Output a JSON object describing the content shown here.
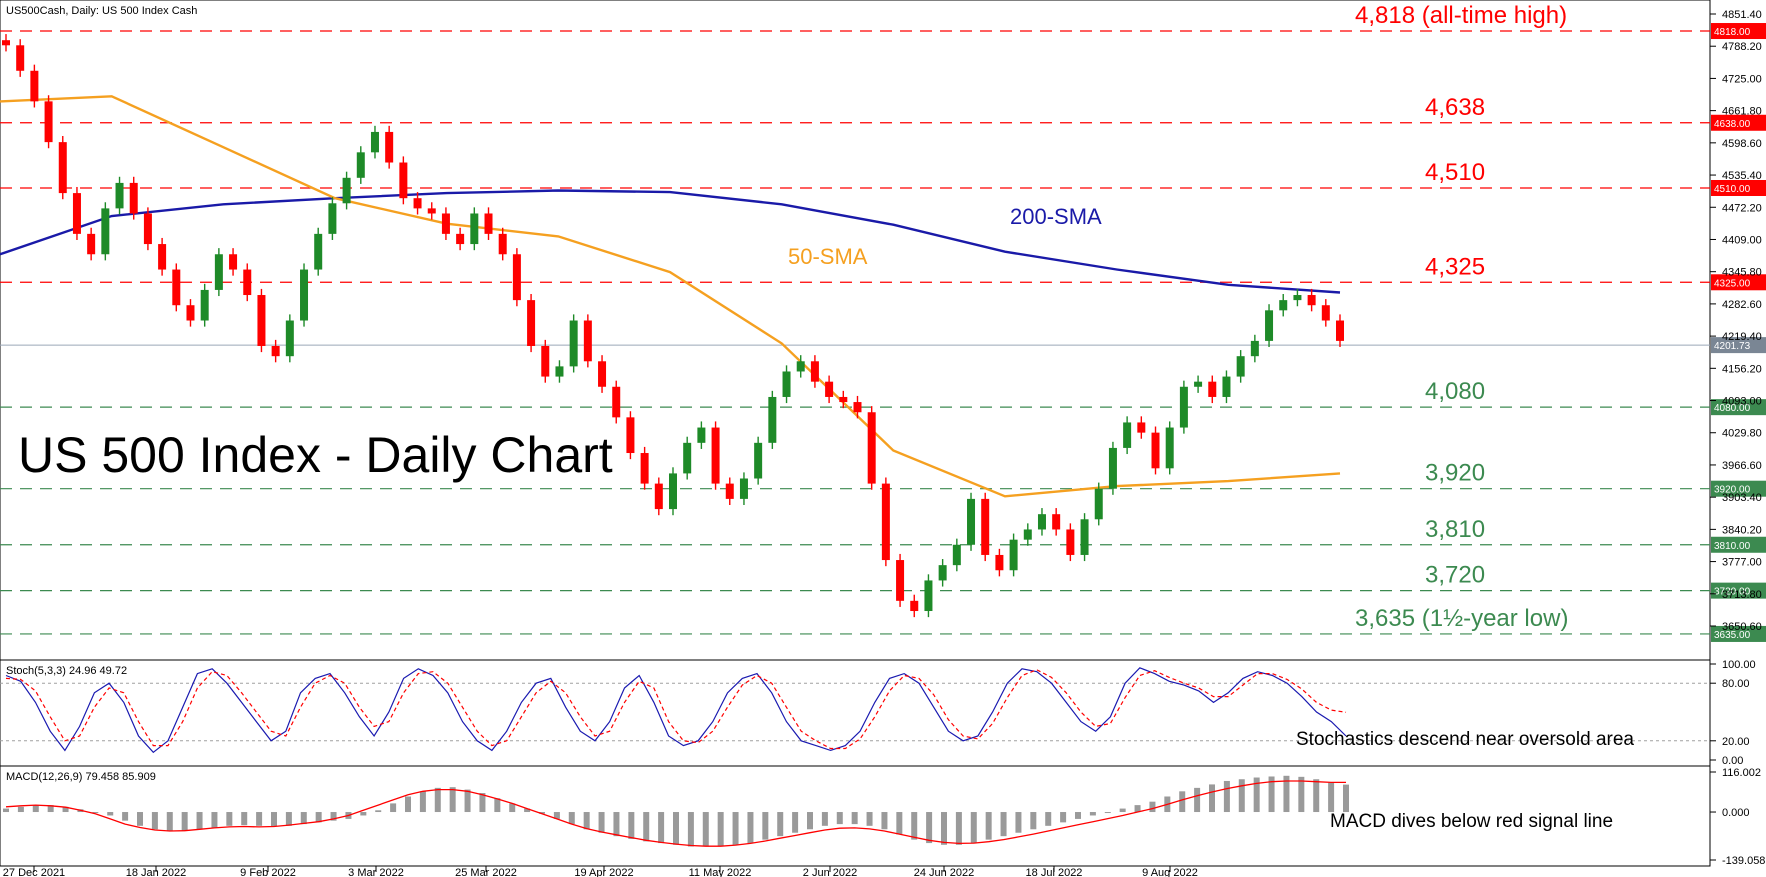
{
  "symbol_header": "US500Cash, Daily:  US 500 Index Cash",
  "chart_title": "US 500 Index - Daily Chart",
  "colors": {
    "resistance": "#ff0000",
    "support": "#3c8a50",
    "sma200": "#1a1aa8",
    "sma50": "#f5a020",
    "bull": "#1e8a28",
    "bear": "#ff0000",
    "stoch_main": "#1a1ab0",
    "stoch_signal": "#ff0000",
    "macd_hist": "#9a9a9a",
    "macd_signal": "#ff0000"
  },
  "chart_data": [
    {
      "type": "candlestick",
      "title": "US 500 Index - Daily Chart",
      "ylim": [
        3600,
        4860
      ],
      "y_ticks": [
        "4851.40",
        "4788.20",
        "4725.00",
        "4661.80",
        "4598.60",
        "4535.40",
        "4472.20",
        "4409.00",
        "4345.80",
        "4282.60",
        "4219.40",
        "4156.20",
        "4093.00",
        "4029.80",
        "3966.60",
        "3903.40",
        "3840.20",
        "3777.00",
        "3713.80",
        "3650.60"
      ],
      "x_tick_labels": [
        "27 Dec 2021",
        "18 Jan 2022",
        "9 Feb 2022",
        "3 Mar 2022",
        "25 Mar 2022",
        "19 Apr 2022",
        "11 May 2022",
        "2 Jun 2022",
        "24 Jun 2022",
        "18 Jul 2022",
        "9 Aug 2022"
      ],
      "current_price": {
        "tag": "4201.73",
        "value": 4201.73
      },
      "resistance_levels": [
        {
          "value": 4818,
          "label": "4,818 (all-time high)",
          "tag": "4818.00"
        },
        {
          "value": 4638,
          "label": "4,638",
          "tag": "4638.00"
        },
        {
          "value": 4510,
          "label": "4,510",
          "tag": "4510.00"
        },
        {
          "value": 4325,
          "label": "4,325",
          "tag": "4325.00"
        }
      ],
      "support_levels": [
        {
          "value": 4080,
          "label": "4,080",
          "tag": "4080.00"
        },
        {
          "value": 3920,
          "label": "3,920",
          "tag": "3920.00"
        },
        {
          "value": 3810,
          "label": "3,810",
          "tag": "3810.00"
        },
        {
          "value": 3720,
          "label": "3,720",
          "tag": "3720.00"
        },
        {
          "value": 3635,
          "label": "3,635 (1½-year low)",
          "tag": "3635.00"
        }
      ],
      "series": [
        {
          "name": "200-SMA",
          "values": [
            4380,
            4455,
            4478,
            4490,
            4500,
            4505,
            4502,
            4478,
            4438,
            4385,
            4350,
            4320,
            4305
          ]
        },
        {
          "name": "50-SMA",
          "values": [
            4680,
            4690,
            4590,
            4490,
            4440,
            4415,
            4345,
            4205,
            3995,
            3905,
            3925,
            3935,
            3950
          ]
        }
      ],
      "closes": [
        4790,
        4740,
        4680,
        4600,
        4500,
        4420,
        4380,
        4470,
        4520,
        4460,
        4400,
        4350,
        4280,
        4250,
        4310,
        4380,
        4350,
        4300,
        4200,
        4180,
        4250,
        4350,
        4420,
        4480,
        4530,
        4580,
        4620,
        4560,
        4490,
        4470,
        4460,
        4420,
        4400,
        4460,
        4420,
        4380,
        4290,
        4200,
        4140,
        4160,
        4250,
        4170,
        4120,
        4060,
        3990,
        3930,
        3880,
        3950,
        4010,
        4040,
        3930,
        3900,
        3940,
        4010,
        4100,
        4150,
        4170,
        4130,
        4100,
        4090,
        4070,
        3930,
        3780,
        3700,
        3680,
        3740,
        3770,
        3810,
        3900,
        3790,
        3760,
        3820,
        3840,
        3870,
        3840,
        3790,
        3860,
        3920,
        4000,
        4050,
        4030,
        3960,
        4040,
        4120,
        4130,
        4100,
        4140,
        4180,
        4210,
        4270,
        4290,
        4300,
        4280,
        4250,
        4210
      ]
    },
    {
      "type": "line",
      "title": "Stoch(5,3,3) 24.96 49.72",
      "ylim": [
        0,
        100
      ],
      "y_ticks": [
        "100.00",
        "80.00",
        "20.00",
        "0.00"
      ],
      "series": [
        {
          "name": "main",
          "values": [
            88,
            82,
            60,
            30,
            10,
            35,
            70,
            80,
            60,
            25,
            8,
            20,
            55,
            90,
            95,
            80,
            60,
            40,
            20,
            30,
            70,
            85,
            90,
            70,
            45,
            25,
            50,
            85,
            95,
            88,
            70,
            40,
            20,
            10,
            30,
            60,
            80,
            85,
            55,
            30,
            20,
            40,
            75,
            88,
            60,
            25,
            15,
            20,
            40,
            70,
            85,
            90,
            70,
            40,
            20,
            15,
            10,
            15,
            30,
            60,
            85,
            90,
            80,
            55,
            30,
            20,
            25,
            50,
            80,
            95,
            92,
            80,
            60,
            40,
            30,
            45,
            80,
            96,
            90,
            82,
            78,
            72,
            60,
            70,
            85,
            92,
            88,
            80,
            66,
            50,
            40,
            24.96
          ]
        },
        {
          "name": "signal",
          "values": [
            85,
            84,
            72,
            45,
            20,
            25,
            55,
            75,
            70,
            40,
            15,
            15,
            40,
            75,
            92,
            88,
            70,
            50,
            30,
            25,
            55,
            80,
            88,
            80,
            55,
            35,
            40,
            70,
            90,
            92,
            80,
            55,
            30,
            15,
            20,
            45,
            70,
            82,
            70,
            45,
            25,
            30,
            60,
            82,
            75,
            40,
            20,
            18,
            30,
            55,
            78,
            88,
            80,
            55,
            30,
            20,
            12,
            12,
            22,
            45,
            72,
            88,
            85,
            68,
            42,
            25,
            22,
            38,
            65,
            88,
            94,
            86,
            70,
            50,
            35,
            38,
            65,
            88,
            93,
            86,
            80,
            75,
            66,
            66,
            78,
            90,
            90,
            84,
            74,
            60,
            52,
            49.72
          ]
        }
      ],
      "annotation": "Stochastics descend near oversold area"
    },
    {
      "type": "bar",
      "title": "MACD(12,26,9) 79.458 85.909",
      "ylim": [
        -139.058,
        116.002
      ],
      "y_ticks": [
        "116.002",
        "0.000",
        "-139.058"
      ],
      "series": [
        {
          "name": "MACD",
          "values": [
            10,
            15,
            20,
            20,
            15,
            8,
            0,
            -10,
            -25,
            -40,
            -50,
            -55,
            -55,
            -50,
            -45,
            -40,
            -38,
            -40,
            -42,
            -40,
            -35,
            -30,
            -25,
            -20,
            -10,
            5,
            25,
            45,
            60,
            70,
            72,
            65,
            55,
            40,
            25,
            10,
            -5,
            -20,
            -35,
            -50,
            -60,
            -70,
            -78,
            -85,
            -90,
            -95,
            -100,
            -100,
            -98,
            -95,
            -90,
            -80,
            -70,
            -60,
            -50,
            -40,
            -35,
            -35,
            -40,
            -50,
            -65,
            -80,
            -90,
            -95,
            -95,
            -90,
            -80,
            -70,
            -60,
            -50,
            -40,
            -30,
            -20,
            -10,
            0,
            10,
            20,
            30,
            45,
            60,
            70,
            80,
            90,
            95,
            100,
            103,
            105,
            102,
            95,
            85,
            79.458
          ]
        },
        {
          "name": "signal",
          "values": [
            15,
            18,
            20,
            18,
            14,
            5,
            -5,
            -20,
            -35,
            -45,
            -52,
            -55,
            -54,
            -50,
            -46,
            -43,
            -42,
            -43,
            -42,
            -38,
            -33,
            -28,
            -20,
            -10,
            5,
            20,
            35,
            50,
            60,
            65,
            65,
            60,
            50,
            38,
            25,
            10,
            -5,
            -20,
            -35,
            -48,
            -58,
            -66,
            -74,
            -82,
            -88,
            -93,
            -97,
            -99,
            -99,
            -96,
            -91,
            -84,
            -76,
            -68,
            -60,
            -52,
            -47,
            -46,
            -49,
            -55,
            -64,
            -73,
            -82,
            -88,
            -91,
            -90,
            -86,
            -80,
            -72,
            -64,
            -55,
            -46,
            -37,
            -28,
            -19,
            -10,
            0,
            10,
            22,
            35,
            47,
            58,
            68,
            76,
            83,
            88,
            90,
            90,
            88,
            86,
            85.909
          ]
        }
      ],
      "annotation": "MACD dives below red signal line"
    }
  ]
}
